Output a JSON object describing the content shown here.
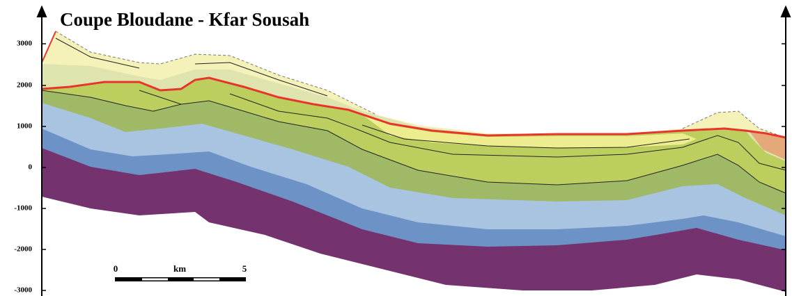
{
  "title": "Coupe Bloudane - Kfar Sousah",
  "y_axis": {
    "ticks": [
      "3000",
      "2000",
      "1000",
      "0",
      "-1000",
      "-2000",
      "-3000"
    ]
  },
  "scale_bar": {
    "start": "0",
    "unit": "km",
    "end": "5"
  }
}
